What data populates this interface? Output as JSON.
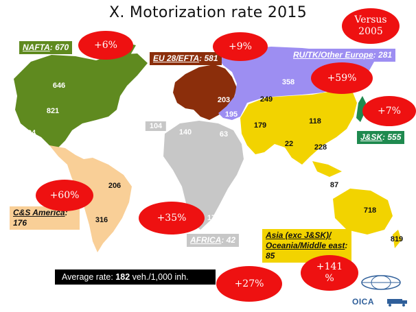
{
  "slide": {
    "title": "X. Motorization rate 2015",
    "versus_label": "Versus\n2005",
    "colors": {
      "nafta": "#5f8a1f",
      "eu": "#8b2e0b",
      "ru": "#9d8ef2",
      "asia": "#f2d300",
      "jsk": "#1f8a4f",
      "africa": "#c7c7c7",
      "cs_america": "#f9cf97",
      "bubble": "#ee1111"
    }
  },
  "regions": [
    {
      "id": "nafta",
      "name": "NAFTA",
      "rate": "670",
      "label_text_color": "#ffffff",
      "label_bg": "#5f8a1f"
    },
    {
      "id": "eu",
      "name": "EU 28/EFTA",
      "rate": "581",
      "label_text_color": "#ffffff",
      "label_bg": "#8b2e0b"
    },
    {
      "id": "ru",
      "name": "RU/TK/Other Europe",
      "rate": "281",
      "label_text_color": "#ffffff",
      "label_bg": "#9d8ef2"
    },
    {
      "id": "jsk",
      "name": "J&SK",
      "rate": "555",
      "label_text_color": "#ffffff",
      "label_bg": "#1f8a4f"
    },
    {
      "id": "africa",
      "name": "AFRICA",
      "rate": "42",
      "label_text_color": "#ffffff",
      "label_bg": "#c7c7c7"
    },
    {
      "id": "cs",
      "name": "C&S America",
      "rate": "176",
      "label_text_color": "#111111",
      "label_bg": "#f9cf97"
    },
    {
      "id": "asia",
      "name": "Asia (exc J&SK)/ Oceania/Middle east",
      "rate": "85",
      "label_text_color": "#111111",
      "label_bg": "#f2d300"
    }
  ],
  "country_values": [
    {
      "value": "646",
      "color": "white"
    },
    {
      "value": "821",
      "color": "white"
    },
    {
      "value": "294",
      "color": "white"
    },
    {
      "value": "203",
      "color": "white"
    },
    {
      "value": "195",
      "color": "white"
    },
    {
      "value": "358",
      "color": "white"
    },
    {
      "value": "249",
      "color": "black"
    },
    {
      "value": "179",
      "color": "black"
    },
    {
      "value": "118",
      "color": "black"
    },
    {
      "value": "22",
      "color": "black"
    },
    {
      "value": "228",
      "color": "black"
    },
    {
      "value": "87",
      "color": "black"
    },
    {
      "value": "718",
      "color": "black"
    },
    {
      "value": "819",
      "color": "black"
    },
    {
      "value": "104",
      "color": "white"
    },
    {
      "value": "140",
      "color": "white"
    },
    {
      "value": "63",
      "color": "white"
    },
    {
      "value": "176",
      "color": "white"
    },
    {
      "value": "206",
      "color": "black"
    },
    {
      "value": "316",
      "color": "black"
    }
  ],
  "growth_bubbles": [
    {
      "text": "+6%"
    },
    {
      "text": "+9%"
    },
    {
      "text": "+59%"
    },
    {
      "text": "+7%"
    },
    {
      "text": "+60%"
    },
    {
      "text": "+35%"
    },
    {
      "text": "+27%"
    },
    {
      "text": "+141\n%"
    }
  ],
  "average": {
    "prefix": "Average rate: ",
    "value": "182",
    "suffix": " veh./1,000 inh."
  },
  "logo": {
    "text": "OICA"
  }
}
